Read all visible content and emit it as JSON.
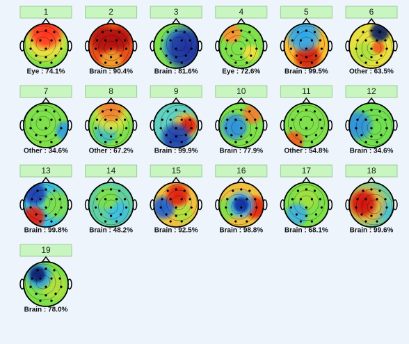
{
  "components": [
    {
      "number": "1",
      "label": "Eye : 74.1%"
    },
    {
      "number": "2",
      "label": "Brain : 90.4%"
    },
    {
      "number": "3",
      "label": "Brain : 81.6%"
    },
    {
      "number": "4",
      "label": "Eye : 72.6%"
    },
    {
      "number": "5",
      "label": "Brain : 99.5%"
    },
    {
      "number": "6",
      "label": "Other : 63.5%"
    },
    {
      "number": "7",
      "label": "Other : 34.6%"
    },
    {
      "number": "8",
      "label": "Other : 67.2%"
    },
    {
      "number": "9",
      "label": "Brain : 99.9%"
    },
    {
      "number": "10",
      "label": "Brain : 77.9%"
    },
    {
      "number": "11",
      "label": "Other : 54.8%"
    },
    {
      "number": "12",
      "label": "Brain : 34.6%"
    },
    {
      "number": "13",
      "label": "Brain : 99.8%"
    },
    {
      "number": "14",
      "label": "Brain : 48.2%"
    },
    {
      "number": "15",
      "label": "Brain : 92.5%"
    },
    {
      "number": "16",
      "label": "Brain : 98.8%"
    },
    {
      "number": "17",
      "label": "Brain : 68.1%"
    },
    {
      "number": "18",
      "label": "Brain : 99.6%"
    },
    {
      "number": "19",
      "label": "Brain : 78.0%"
    }
  ]
}
